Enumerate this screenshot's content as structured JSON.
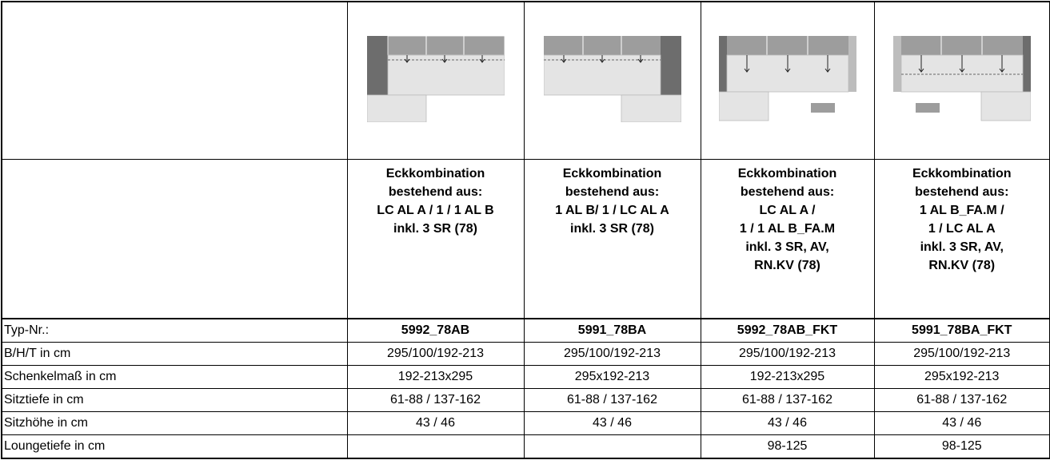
{
  "table": {
    "columns": [
      {
        "description": [
          "Eckkombination",
          "bestehend aus:",
          "LC AL A / 1 / 1 AL B",
          "inkl. 3 SR (78)"
        ]
      },
      {
        "description": [
          "Eckkombination",
          "bestehend aus:",
          "1 AL B/ 1 / LC AL A",
          "inkl. 3 SR (78)"
        ]
      },
      {
        "description": [
          "Eckkombination",
          "bestehend aus:",
          "LC AL A /",
          "1 / 1 AL B_FA.M",
          "inkl. 3 SR, AV,",
          "RN.KV (78)"
        ]
      },
      {
        "description": [
          "Eckkombination",
          "bestehend aus:",
          "1 AL B_FA.M /",
          "1 / LC AL A",
          "inkl. 3 SR, AV,",
          "RN.KV (78)"
        ]
      }
    ],
    "rows": [
      {
        "label": "Typ-Nr.:",
        "cells": [
          "5992_78AB",
          "5991_78BA",
          "5992_78AB_FKT",
          "5991_78BA_FKT"
        ]
      },
      {
        "label": "B/H/T in cm",
        "cells": [
          "295/100/192-213",
          "295/100/192-213",
          "295/100/192-213",
          "295/100/192-213"
        ]
      },
      {
        "label": "Schenkelmaß in cm",
        "cells": [
          "192-213x295",
          "295x192-213",
          "192-213x295",
          "295x192-213"
        ]
      },
      {
        "label": "Sitztiefe in cm",
        "cells": [
          "61-88 / 137-162",
          "61-88 / 137-162",
          "61-88 / 137-162",
          "61-88 / 137-162"
        ]
      },
      {
        "label": "Sitzhöhe in cm",
        "cells": [
          "43 / 46",
          "43 / 46",
          "43 / 46",
          "43 / 46"
        ]
      },
      {
        "label": "Loungetiefe in cm",
        "cells": [
          null,
          null,
          "98-125",
          "98-125"
        ]
      }
    ]
  }
}
